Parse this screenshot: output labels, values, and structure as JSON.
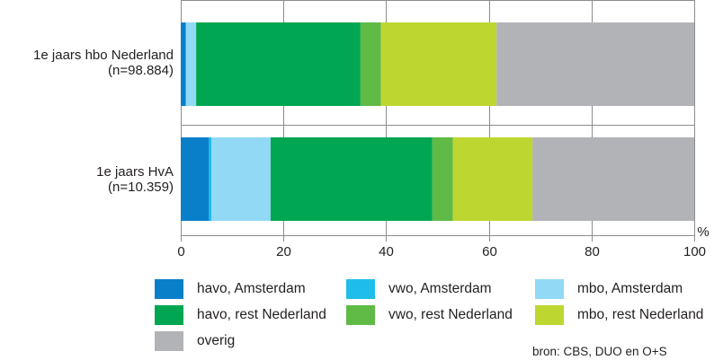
{
  "chart_data": {
    "type": "bar",
    "orientation": "horizontal",
    "stacked": true,
    "categories": [
      {
        "name": "1e jaars hbo Nederland",
        "n": "(n=98.884)"
      },
      {
        "name": "1e jaars HvA",
        "n": "(n=10.359)"
      }
    ],
    "series": [
      {
        "name": "havo, Amsterdam",
        "color": "#0a7fc9",
        "values": [
          1.0,
          5.5
        ]
      },
      {
        "name": "vwo, Amsterdam",
        "color": "#1fbde9",
        "values": [
          0.0,
          0.5
        ]
      },
      {
        "name": "mbo, Amsterdam",
        "color": "#92d9f5",
        "values": [
          2.0,
          11.5
        ]
      },
      {
        "name": "havo, rest Nederland",
        "color": "#00a651",
        "values": [
          32.0,
          31.5
        ]
      },
      {
        "name": "vwo, rest Nederland",
        "color": "#5fba46",
        "values": [
          4.0,
          4.0
        ]
      },
      {
        "name": "mbo, rest Nederland",
        "color": "#bed630",
        "values": [
          22.5,
          15.5
        ]
      },
      {
        "name": "overig",
        "color": "#b1b3b6",
        "values": [
          38.5,
          31.5
        ]
      }
    ],
    "xlim": [
      0,
      100
    ],
    "xticks": [
      "0",
      "20",
      "40",
      "60",
      "80",
      "100"
    ],
    "unit": "%",
    "grid": true,
    "legend_placement": "bottom"
  },
  "source": "bron: CBS, DUO en O+S"
}
